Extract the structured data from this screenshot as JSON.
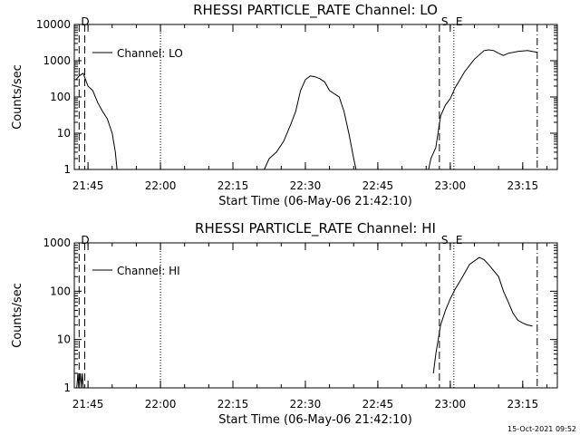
{
  "footer_timestamp": "15-Oct-2021 09:52",
  "chart_data": [
    {
      "type": "line",
      "title": "RHESSI PARTICLE_RATE Channel: LO",
      "xlabel": "Start Time (06-May-06 21:42:10)",
      "ylabel": "Counts/sec",
      "y_scale": "log",
      "ylim": [
        1,
        10000
      ],
      "y_ticks": [
        "1",
        "10",
        "100",
        "1000",
        "10000"
      ],
      "xlim": [
        "21:42:10",
        "23:22:10"
      ],
      "x_ticks": [
        "21:45",
        "22:00",
        "22:15",
        "22:30",
        "22:45",
        "23:00",
        "23:15"
      ],
      "legend": {
        "position": "top-left",
        "entries": [
          "Channel: LO"
        ]
      },
      "markers": {
        "D": "D",
        "S": "S",
        "E": "E"
      },
      "series": [
        {
          "name": "Channel: LO",
          "segments": [
            [
              [
                "21:42:30",
                300
              ],
              [
                "21:43:10",
                380
              ],
              [
                "21:44:00",
                450
              ],
              [
                "21:45:00",
                200
              ],
              [
                "21:46:00",
                150
              ],
              [
                "21:47:00",
                70
              ],
              [
                "21:48:00",
                40
              ],
              [
                "21:49:00",
                25
              ],
              [
                "21:50:00",
                10
              ],
              [
                "21:50:40",
                3
              ],
              [
                "21:51:00",
                1
              ]
            ],
            [
              [
                "22:21:30",
                1
              ],
              [
                "22:22:30",
                2
              ],
              [
                "22:24:00",
                3
              ],
              [
                "22:25:30",
                6
              ],
              [
                "22:27:00",
                18
              ],
              [
                "22:28:00",
                40
              ],
              [
                "22:29:00",
                150
              ],
              [
                "22:30:00",
                300
              ],
              [
                "22:31:00",
                380
              ],
              [
                "22:32:00",
                360
              ],
              [
                "22:33:00",
                320
              ],
              [
                "22:34:00",
                260
              ],
              [
                "22:35:00",
                150
              ],
              [
                "22:37:00",
                100
              ],
              [
                "22:38:00",
                40
              ],
              [
                "22:39:00",
                10
              ],
              [
                "22:40:00",
                2
              ],
              [
                "22:40:30",
                1
              ]
            ],
            [
              [
                "22:55:30",
                1
              ],
              [
                "22:56:00",
                2
              ],
              [
                "22:57:00",
                4
              ],
              [
                "22:58:00",
                30
              ],
              [
                "22:59:00",
                60
              ],
              [
                "23:00:00",
                90
              ],
              [
                "23:01:00",
                180
              ],
              [
                "23:03:00",
                500
              ],
              [
                "23:05:00",
                1100
              ],
              [
                "23:07:00",
                1900
              ],
              [
                "23:08:00",
                2000
              ],
              [
                "23:09:00",
                1900
              ],
              [
                "23:10:00",
                1600
              ],
              [
                "23:11:00",
                1400
              ],
              [
                "23:12:00",
                1600
              ],
              [
                "23:14:00",
                1800
              ],
              [
                "23:16:00",
                1900
              ],
              [
                "23:18:00",
                1700
              ]
            ]
          ]
        }
      ]
    },
    {
      "type": "line",
      "title": "RHESSI PARTICLE_RATE Channel: HI",
      "xlabel": "Start Time (06-May-06 21:42:10)",
      "ylabel": "Counts/sec",
      "y_scale": "log",
      "ylim": [
        1,
        1000
      ],
      "y_ticks": [
        "1",
        "10",
        "100",
        "1000"
      ],
      "xlim": [
        "21:42:10",
        "23:22:10"
      ],
      "x_ticks": [
        "21:45",
        "22:00",
        "22:15",
        "22:30",
        "22:45",
        "23:00",
        "23:15"
      ],
      "legend": {
        "position": "top-left",
        "entries": [
          "Channel: HI"
        ]
      },
      "markers": {
        "D": "D",
        "S": "S",
        "E": "E"
      },
      "series": [
        {
          "name": "Channel: HI",
          "segments": [
            [
              [
                "21:42:40",
                1
              ],
              [
                "21:42:55",
                2
              ],
              [
                "21:43:05",
                1
              ],
              [
                "21:43:25",
                2
              ],
              [
                "21:43:35",
                1
              ],
              [
                "21:43:50",
                2
              ],
              [
                "21:44:00",
                1
              ]
            ],
            [
              [
                "22:56:30",
                2
              ],
              [
                "22:57:00",
                5
              ],
              [
                "22:58:00",
                20
              ],
              [
                "22:59:00",
                40
              ],
              [
                "23:00:00",
                70
              ],
              [
                "23:01:00",
                110
              ],
              [
                "23:02:00",
                160
              ],
              [
                "23:03:00",
                240
              ],
              [
                "23:04:00",
                360
              ],
              [
                "23:06:00",
                500
              ],
              [
                "23:07:00",
                450
              ],
              [
                "23:08:00",
                350
              ],
              [
                "23:10:00",
                200
              ],
              [
                "23:11:00",
                100
              ],
              [
                "23:12:00",
                60
              ],
              [
                "23:13:00",
                35
              ],
              [
                "23:14:00",
                25
              ],
              [
                "23:15:00",
                22
              ],
              [
                "23:16:00",
                20
              ],
              [
                "23:17:00",
                19
              ]
            ]
          ]
        }
      ]
    }
  ]
}
